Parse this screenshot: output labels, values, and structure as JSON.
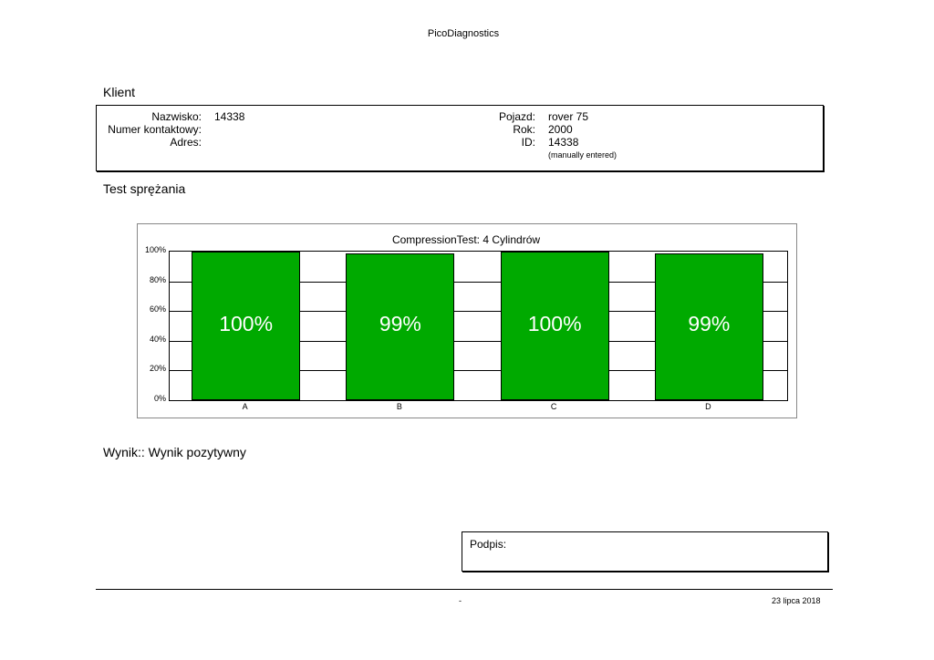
{
  "header": {
    "title": "PicoDiagnostics"
  },
  "client": {
    "section_title": "Klient",
    "surname_label": "Nazwisko:",
    "surname_value": "14338",
    "contact_label": "Numer kontaktowy:",
    "address_label": "Adres:",
    "vehicle_label": "Pojazd:",
    "vehicle_value": "rover 75",
    "year_label": "Rok:",
    "year_value": "2000",
    "id_label": "ID:",
    "id_value": "14338",
    "id_note": "(manually entered)"
  },
  "test": {
    "section_title": "Test sprężania"
  },
  "chart_data": {
    "type": "bar",
    "title": "CompressionTest: 4 Cylindrów",
    "categories": [
      "A",
      "B",
      "C",
      "D"
    ],
    "values": [
      100,
      99,
      100,
      99
    ],
    "data_labels": [
      "100%",
      "99%",
      "100%",
      "99%"
    ],
    "yticks": [
      "0%",
      "20%",
      "40%",
      "60%",
      "80%",
      "100%"
    ],
    "ylim": [
      0,
      100
    ],
    "bar_color": "#00aa00",
    "grid": true
  },
  "result": {
    "text": "Wynik:: Wynik pozytywny"
  },
  "signature": {
    "label": "Podpis:"
  },
  "footer": {
    "center": "-",
    "date": "23 lipca 2018"
  }
}
